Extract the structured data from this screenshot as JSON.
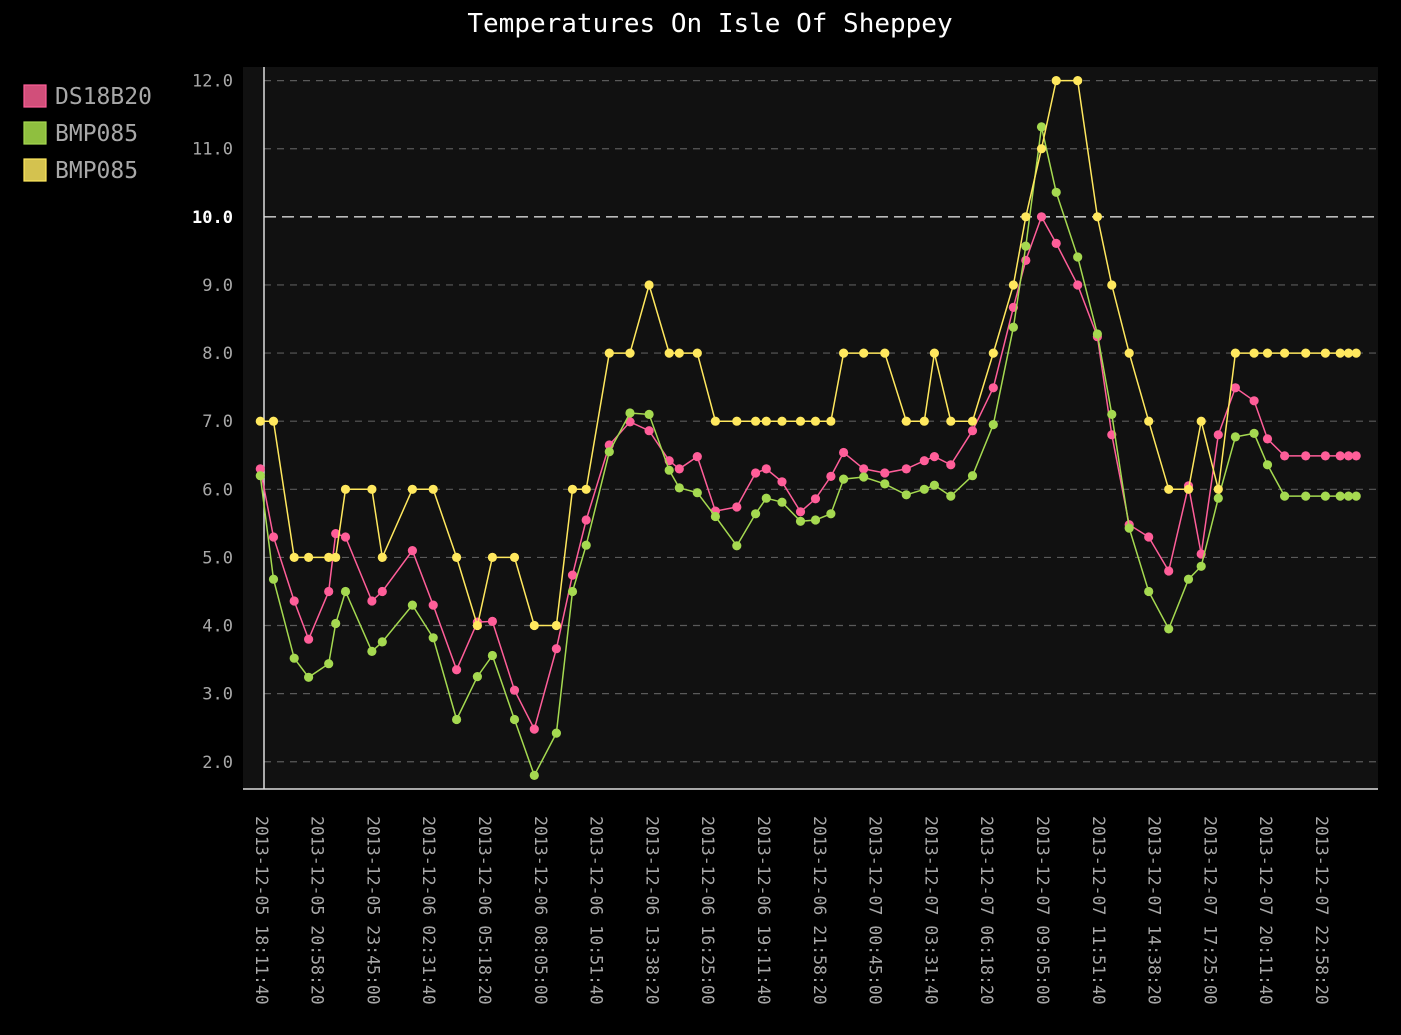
{
  "chart_data": {
    "type": "line",
    "title": "Temperatures On Isle Of Sheppey",
    "ylim": [
      1.6,
      12.2
    ],
    "y_ticks": [
      2.0,
      3.0,
      4.0,
      5.0,
      6.0,
      7.0,
      8.0,
      9.0,
      10.0,
      11.0,
      12.0
    ],
    "y_tick_labels": [
      "2.0",
      "3.0",
      "4.0",
      "5.0",
      "6.0",
      "7.0",
      "8.0",
      "9.0",
      "10.0",
      "11.0",
      "12.0"
    ],
    "y_major_tick": 10.0,
    "x_range": [
      "2013-12-05 17:20:00",
      "2013-12-08 01:50:00"
    ],
    "x_ticks": [
      "2013-12-05 18:11:40",
      "2013-12-05 20:58:20",
      "2013-12-05 23:45:00",
      "2013-12-06 02:31:40",
      "2013-12-06 05:18:20",
      "2013-12-06 08:05:00",
      "2013-12-06 10:51:40",
      "2013-12-06 13:38:20",
      "2013-12-06 16:25:00",
      "2013-12-06 19:11:40",
      "2013-12-06 21:58:20",
      "2013-12-07 00:45:00",
      "2013-12-07 03:31:40",
      "2013-12-07 06:18:20",
      "2013-12-07 09:05:00",
      "2013-12-07 11:51:40",
      "2013-12-07 14:38:20",
      "2013-12-07 17:25:00",
      "2013-12-07 20:11:40",
      "2013-12-07 22:58:20"
    ],
    "grid": true,
    "legend_position": "top-left",
    "background": "#000000",
    "plot_background": "#111111",
    "x": [
      "2013-12-05 18:11:40",
      "2013-12-05 18:51:00",
      "2013-12-05 19:53:00",
      "2013-12-05 20:36:00",
      "2013-12-05 21:36:00",
      "2013-12-05 21:57:00",
      "2013-12-05 22:26:00",
      "2013-12-05 23:45:00",
      "2013-12-06 00:16:00",
      "2013-12-06 01:46:00",
      "2013-12-06 02:48:00",
      "2013-12-06 03:58:00",
      "2013-12-06 05:00:00",
      "2013-12-06 05:45:00",
      "2013-12-06 06:51:00",
      "2013-12-06 07:50:00",
      "2013-12-06 08:56:00",
      "2013-12-06 09:44:00",
      "2013-12-06 10:25:00",
      "2013-12-06 11:34:00",
      "2013-12-06 12:36:00",
      "2013-12-06 13:33:00",
      "2013-12-06 14:33:00",
      "2013-12-06 15:03:00",
      "2013-12-06 15:57:00",
      "2013-12-06 16:51:00",
      "2013-12-06 17:55:00",
      "2013-12-06 18:51:00",
      "2013-12-06 19:23:00",
      "2013-12-06 20:10:00",
      "2013-12-06 21:05:00",
      "2013-12-06 21:50:00",
      "2013-12-06 22:36:00",
      "2013-12-06 23:14:00",
      "2013-12-07 00:14:00",
      "2013-12-07 01:17:00",
      "2013-12-07 02:21:00",
      "2013-12-07 03:15:00",
      "2013-12-07 03:45:00",
      "2013-12-07 04:34:00",
      "2013-12-07 05:39:00",
      "2013-12-07 06:41:00",
      "2013-12-07 07:41:00",
      "2013-12-07 08:18:00",
      "2013-12-07 09:05:00",
      "2013-12-07 09:49:00",
      "2013-12-07 10:53:00",
      "2013-12-07 11:52:00",
      "2013-12-07 12:35:00",
      "2013-12-07 13:27:00",
      "2013-12-07 14:25:00",
      "2013-12-07 15:25:00",
      "2013-12-07 16:24:00",
      "2013-12-07 17:02:00",
      "2013-12-07 17:53:00",
      "2013-12-07 18:44:00",
      "2013-12-07 19:40:00",
      "2013-12-07 20:20:00",
      "2013-12-07 21:11:00",
      "2013-12-07 22:14:00",
      "2013-12-07 23:13:00",
      "2013-12-07 23:57:00",
      "2013-12-08 00:22:00",
      "2013-12-08 00:45:00"
    ],
    "series": [
      {
        "name": "DS18B20",
        "color": "#ff5e99",
        "legend_color": "#d14f7a",
        "values": [
          6.3,
          5.3,
          4.36,
          3.8,
          4.5,
          5.35,
          5.3,
          4.36,
          4.5,
          5.1,
          4.3,
          3.35,
          4.05,
          4.06,
          3.05,
          2.48,
          3.66,
          4.74,
          5.55,
          6.65,
          6.99,
          6.86,
          6.42,
          6.3,
          6.48,
          5.68,
          5.74,
          6.24,
          6.3,
          6.11,
          5.67,
          5.86,
          6.19,
          6.54,
          6.3,
          6.24,
          6.3,
          6.42,
          6.48,
          6.36,
          6.86,
          7.49,
          8.67,
          9.36,
          10.0,
          9.61,
          9.0,
          8.24,
          6.8,
          5.48,
          5.3,
          4.8,
          6.05,
          5.05,
          6.8,
          7.49,
          7.3,
          6.74,
          6.49,
          6.49,
          6.49,
          6.49,
          6.49,
          6.49
        ]
      },
      {
        "name": "BMP085",
        "color": "#a5d950",
        "legend_color": "#8fbf3f",
        "values": [
          6.2,
          4.68,
          3.52,
          3.24,
          3.44,
          4.03,
          4.5,
          3.62,
          3.76,
          4.3,
          3.82,
          2.62,
          3.25,
          3.56,
          2.62,
          1.8,
          2.42,
          4.5,
          5.18,
          6.55,
          7.12,
          7.1,
          6.28,
          6.02,
          5.95,
          5.6,
          5.17,
          5.64,
          5.87,
          5.81,
          5.53,
          5.55,
          5.64,
          6.15,
          6.18,
          6.08,
          5.92,
          6.0,
          6.06,
          5.9,
          6.2,
          6.95,
          8.38,
          9.57,
          11.32,
          10.36,
          9.41,
          8.28,
          7.1,
          5.43,
          4.5,
          3.95,
          4.68,
          4.87,
          5.87,
          6.77,
          6.82,
          6.36,
          5.9,
          5.9,
          5.9,
          5.9,
          5.9,
          5.9
        ]
      },
      {
        "name": "BMP085",
        "color": "#ffe85e",
        "legend_color": "#d4c24f",
        "values": [
          7,
          7,
          5,
          5,
          5,
          5,
          6,
          6,
          5,
          6,
          6,
          5,
          4,
          5,
          5,
          4,
          4,
          6,
          6,
          8,
          8,
          9,
          8,
          8,
          8,
          7,
          7,
          7,
          7,
          7,
          7,
          7,
          7,
          8,
          8,
          8,
          7,
          7,
          8,
          7,
          7,
          8,
          9,
          10,
          11,
          12,
          12,
          10,
          9,
          8,
          7,
          6,
          6,
          7,
          6,
          8,
          8,
          8,
          8,
          8,
          8,
          8,
          8,
          8
        ]
      }
    ]
  }
}
